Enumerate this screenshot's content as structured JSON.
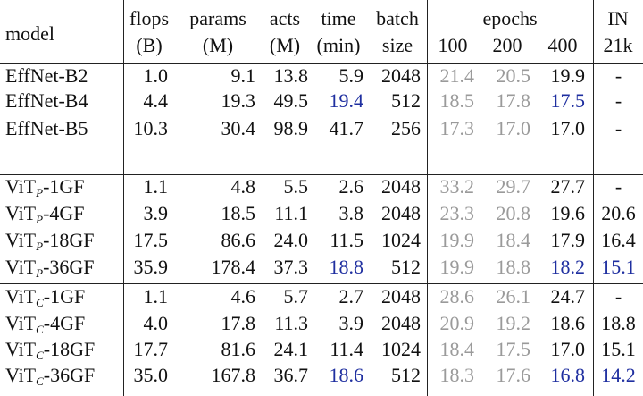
{
  "columns": {
    "model": "model",
    "flops": [
      "flops",
      "(B)"
    ],
    "params": [
      "params",
      "(M)"
    ],
    "acts": [
      "acts",
      "(M)"
    ],
    "time": [
      "time",
      "(min)"
    ],
    "batch": [
      "batch",
      "size"
    ],
    "epochs": "epochs",
    "epoch_values": [
      "100",
      "200",
      "400"
    ],
    "in21k": [
      "IN",
      "21k"
    ]
  },
  "colors": {
    "text": "#111111",
    "gray": "#9a9a9a",
    "blue": "#1f2fa0"
  },
  "rows": [
    {
      "model": "EffNet-B2",
      "flops": "1.0",
      "params": "9.1",
      "acts": "13.8",
      "time": "5.9",
      "batch": "2048",
      "e100": "21.4",
      "e200": "20.5",
      "e400": "19.9",
      "in21k": "-"
    },
    {
      "model": "EffNet-B4",
      "flops": "4.4",
      "params": "19.3",
      "acts": "49.5",
      "time": "19.4",
      "batch": "512",
      "e100": "18.5",
      "e200": "17.8",
      "e400": "17.5",
      "in21k": "-"
    },
    {
      "model": "EffNet-B5",
      "flops": "10.3",
      "params": "30.4",
      "acts": "98.9",
      "time": "41.7",
      "batch": "256",
      "e100": "17.3",
      "e200": "17.0",
      "e400": "17.0",
      "in21k": "-"
    },
    {
      "model": "ViT",
      "sub": "P",
      "suffix": "-1GF",
      "flops": "1.1",
      "params": "4.8",
      "acts": "5.5",
      "time": "2.6",
      "batch": "2048",
      "e100": "33.2",
      "e200": "29.7",
      "e400": "27.7",
      "in21k": "-"
    },
    {
      "model": "ViT",
      "sub": "P",
      "suffix": "-4GF",
      "flops": "3.9",
      "params": "18.5",
      "acts": "11.1",
      "time": "3.8",
      "batch": "2048",
      "e100": "23.3",
      "e200": "20.8",
      "e400": "19.6",
      "in21k": "20.6"
    },
    {
      "model": "ViT",
      "sub": "P",
      "suffix": "-18GF",
      "flops": "17.5",
      "params": "86.6",
      "acts": "24.0",
      "time": "11.5",
      "batch": "1024",
      "e100": "19.9",
      "e200": "18.4",
      "e400": "17.9",
      "in21k": "16.4"
    },
    {
      "model": "ViT",
      "sub": "P",
      "suffix": "-36GF",
      "flops": "35.9",
      "params": "178.4",
      "acts": "37.3",
      "time": "18.8",
      "batch": "512",
      "e100": "19.9",
      "e200": "18.8",
      "e400": "18.2",
      "in21k": "15.1"
    },
    {
      "model": "ViT",
      "sub": "C",
      "suffix": "-1GF",
      "flops": "1.1",
      "params": "4.6",
      "acts": "5.7",
      "time": "2.7",
      "batch": "2048",
      "e100": "28.6",
      "e200": "26.1",
      "e400": "24.7",
      "in21k": "-"
    },
    {
      "model": "ViT",
      "sub": "C",
      "suffix": "-4GF",
      "flops": "4.0",
      "params": "17.8",
      "acts": "11.3",
      "time": "3.9",
      "batch": "2048",
      "e100": "20.9",
      "e200": "19.2",
      "e400": "18.6",
      "in21k": "18.8"
    },
    {
      "model": "ViT",
      "sub": "C",
      "suffix": "-18GF",
      "flops": "17.7",
      "params": "81.6",
      "acts": "24.1",
      "time": "11.4",
      "batch": "1024",
      "e100": "18.4",
      "e200": "17.5",
      "e400": "17.0",
      "in21k": "15.1"
    },
    {
      "model": "ViT",
      "sub": "C",
      "suffix": "-36GF",
      "flops": "35.0",
      "params": "167.8",
      "acts": "36.7",
      "time": "18.6",
      "batch": "512",
      "e100": "18.3",
      "e200": "17.6",
      "e400": "16.8",
      "in21k": "14.2"
    }
  ],
  "highlight": {
    "time": [
      1,
      6,
      10
    ],
    "e400": [
      1,
      6,
      10
    ],
    "in21k": [
      6,
      10
    ]
  }
}
